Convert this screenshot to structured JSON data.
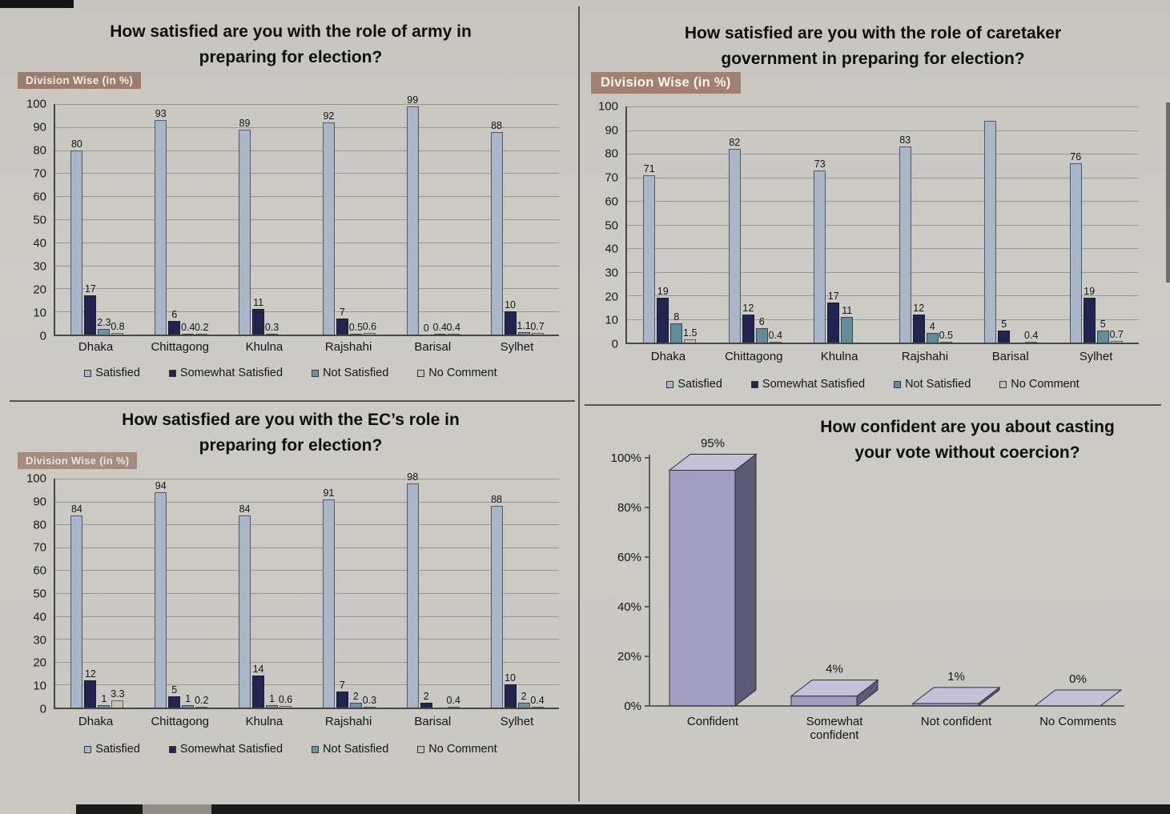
{
  "charts": [
    {
      "id": "army-satisfaction",
      "type": "grouped-bar",
      "title_line1": "How satisfied are you with the role of army in",
      "title_line2": "preparing for election?",
      "badge": "Division Wise (in %)",
      "ymax": 100,
      "yticks": [
        0,
        10,
        20,
        30,
        40,
        50,
        60,
        70,
        80,
        90,
        100
      ],
      "categories": [
        "Dhaka",
        "Chittagong",
        "Khulna",
        "Rajshahi",
        "Barisal",
        "Sylhet"
      ],
      "series": [
        {
          "name": "Satisfied",
          "color": "#a9b6c9",
          "values": [
            80,
            93,
            89,
            92,
            99,
            88
          ],
          "labels": [
            "80",
            "93",
            "89",
            "92",
            "99",
            "88"
          ]
        },
        {
          "name": "Somewhat Satisfied",
          "color": "#21244f",
          "values": [
            17,
            6,
            11,
            7,
            0,
            10
          ],
          "labels": [
            "17",
            "6",
            "11",
            "7",
            "0",
            "10"
          ]
        },
        {
          "name": "Not Satisfied",
          "color": "#6f92a0",
          "values": [
            2.3,
            0.4,
            0.3,
            0.5,
            0.4,
            1.1
          ],
          "labels": [
            "2.3",
            "0.4",
            "0.3",
            "0.5",
            "0.4",
            "1.1"
          ]
        },
        {
          "name": "No Comment",
          "color": "#c7c1ad",
          "values": [
            0.8,
            0.2,
            0,
            0.6,
            0.4,
            0.7
          ],
          "labels": [
            "0.8",
            "0.2",
            "",
            "0.6",
            "0.4",
            "0.7"
          ]
        }
      ]
    },
    {
      "id": "caretaker-satisfaction",
      "type": "grouped-bar",
      "title_line1": "How satisfied are you with the role of caretaker",
      "title_line2": "government in preparing for election?",
      "badge": "Division Wise (in %)",
      "ymax": 100,
      "yticks": [
        0,
        10,
        20,
        30,
        40,
        50,
        60,
        70,
        80,
        90,
        100
      ],
      "categories": [
        "Dhaka",
        "Chittagong",
        "Khulna",
        "Rajshahi",
        "Barisal",
        "Sylhet"
      ],
      "series": [
        {
          "name": "Satisfied",
          "color": "#a9b6c9",
          "values": [
            71,
            82,
            73,
            83,
            94,
            76
          ],
          "labels": [
            "71",
            "82",
            "73",
            "83",
            "",
            "76"
          ]
        },
        {
          "name": "Somewhat Satisfied",
          "color": "#21244f",
          "values": [
            19,
            12,
            17,
            12,
            5,
            19
          ],
          "labels": [
            "19",
            "12",
            "17",
            "12",
            "5",
            "19"
          ]
        },
        {
          "name": "Not Satisfied",
          "color": "#5f8d98",
          "values": [
            8,
            6,
            11,
            4,
            0,
            5
          ],
          "labels": [
            "8",
            "6",
            "11",
            "4",
            "",
            "5"
          ]
        },
        {
          "name": "No Comment",
          "color": "#c7c1ad",
          "values": [
            1.5,
            0.4,
            0,
            0.5,
            0.4,
            0.7
          ],
          "labels": [
            "1.5",
            "0.4",
            "",
            "0.5",
            "0.4",
            "0.7"
          ]
        }
      ]
    },
    {
      "id": "ec-satisfaction",
      "type": "grouped-bar",
      "title_line1": "How satisfied are you with the EC’s role in",
      "title_line2": "preparing for election?",
      "badge": "Division Wise (in %)",
      "ymax": 100,
      "yticks": [
        0,
        10,
        20,
        30,
        40,
        50,
        60,
        70,
        80,
        90,
        100
      ],
      "categories": [
        "Dhaka",
        "Chittagong",
        "Khulna",
        "Rajshahi",
        "Barisal",
        "Sylhet"
      ],
      "series": [
        {
          "name": "Satisfied",
          "color": "#a9b6c9",
          "values": [
            84,
            94,
            84,
            91,
            98,
            88
          ],
          "labels": [
            "84",
            "94",
            "84",
            "91",
            "98",
            "88"
          ]
        },
        {
          "name": "Somewhat Satisfied",
          "color": "#21244f",
          "values": [
            12,
            5,
            14,
            7,
            2,
            10
          ],
          "labels": [
            "12",
            "5",
            "14",
            "7",
            "2",
            "10"
          ]
        },
        {
          "name": "Not Satisfied",
          "color": "#6f92a0",
          "values": [
            1,
            1,
            1,
            2,
            0,
            2
          ],
          "labels": [
            "1",
            "1",
            "1",
            "2",
            "",
            "2"
          ]
        },
        {
          "name": "No Comment",
          "color": "#c7c1ad",
          "values": [
            3.3,
            0.2,
            0.6,
            0.3,
            0.4,
            0.4
          ],
          "labels": [
            "3.3",
            "0.2",
            "0.6",
            "0.3",
            "0.4",
            "0.4"
          ]
        }
      ]
    },
    {
      "id": "vote-confidence",
      "type": "bar3d",
      "title_line1": "How confident are you about casting",
      "title_line2": "your vote without coercion?",
      "ymax": 100,
      "yticks": [
        0,
        20,
        40,
        60,
        80,
        100
      ],
      "ytick_labels": [
        "0%",
        "20%",
        "40%",
        "60%",
        "80%",
        "100%"
      ],
      "categories": [
        "Confident",
        "Somewhat confident",
        "Not confident",
        "No Comments"
      ],
      "category_lines": [
        [
          "Confident"
        ],
        [
          "Somewhat",
          "confident"
        ],
        [
          "Not confident"
        ],
        [
          "No Comments"
        ]
      ],
      "values": [
        95,
        4,
        1,
        0
      ],
      "labels": [
        "95%",
        "4%",
        "1%",
        "0%"
      ],
      "colors": {
        "front": "#a19ec0",
        "top": "#c3c0d8",
        "side": "#5d5a78",
        "outline": "#2e2e38"
      }
    }
  ]
}
